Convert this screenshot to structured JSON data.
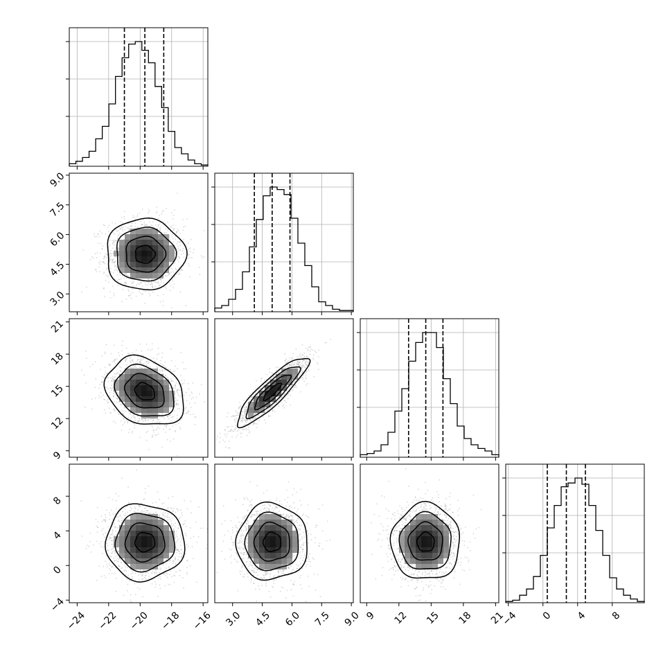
{
  "chart_data": {
    "type": "corner",
    "params": [
      {
        "ticks": [
          "−24",
          "−22",
          "−20",
          "−18",
          "−16"
        ],
        "tick_values": [
          -24,
          -22,
          -20,
          -18,
          -16
        ],
        "range": [
          -24.5,
          -15.7
        ],
        "median": -19.7,
        "q16": -21.0,
        "q84": -18.5
      },
      {
        "ticks": [
          "3.0",
          "4.5",
          "6.0",
          "7.5",
          "9.0"
        ],
        "tick_values": [
          3.0,
          4.5,
          6.0,
          7.5,
          9.0
        ],
        "range": [
          2.1,
          9.1
        ],
        "median": 5.0,
        "q16": 4.1,
        "q84": 5.9
      },
      {
        "ticks": [
          "9",
          "12",
          "15",
          "18",
          "21"
        ],
        "tick_values": [
          9,
          12,
          15,
          18,
          21
        ],
        "range": [
          8.4,
          21.3
        ],
        "median": 14.5,
        "q16": 12.9,
        "q84": 16.1
      },
      {
        "ticks": [
          "−4",
          "0",
          "4",
          "8"
        ],
        "tick_values": [
          -4,
          0,
          4,
          8
        ],
        "range": [
          -4.3,
          11.7
        ],
        "median": 2.7,
        "q16": 0.5,
        "q84": 4.9
      }
    ],
    "histograms": [
      [
        0.02,
        0.04,
        0.07,
        0.12,
        0.22,
        0.32,
        0.5,
        0.72,
        0.87,
        0.98,
        1.0,
        0.93,
        0.83,
        0.64,
        0.47,
        0.28,
        0.15,
        0.1,
        0.05,
        0.02,
        0.01
      ],
      [
        0.03,
        0.05,
        0.1,
        0.18,
        0.32,
        0.52,
        0.74,
        0.93,
        1.0,
        0.98,
        0.94,
        0.75,
        0.55,
        0.37,
        0.2,
        0.08,
        0.05,
        0.02,
        0.01,
        0.01
      ],
      [
        0.02,
        0.03,
        0.05,
        0.1,
        0.2,
        0.37,
        0.55,
        0.77,
        0.92,
        1.0,
        1.0,
        0.88,
        0.63,
        0.43,
        0.25,
        0.15,
        0.1,
        0.07,
        0.05,
        0.02
      ],
      [
        0.01,
        0.02,
        0.06,
        0.11,
        0.21,
        0.38,
        0.6,
        0.78,
        0.93,
        0.96,
        1.0,
        0.95,
        0.78,
        0.58,
        0.38,
        0.2,
        0.11,
        0.06,
        0.03,
        0.01
      ]
    ],
    "correlations": {
      "1-0": 0.0,
      "2-0": -0.25,
      "2-1": 0.88,
      "3-0": 0.0,
      "3-1": 0.0,
      "3-2": 0.0
    },
    "xlabel": "",
    "ylabel": "",
    "title": "",
    "grid": true,
    "levels_sigma": [
      0.5,
      1.0,
      1.5,
      2.0
    ]
  }
}
